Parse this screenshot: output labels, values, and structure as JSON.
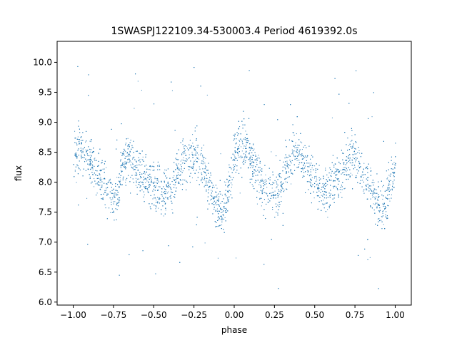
{
  "chart_data": {
    "type": "scatter",
    "title": "1SWASPJ122109.34-530003.4 Period 4619392.0s",
    "xlabel": "phase",
    "ylabel": "flux",
    "xlim": [
      -1.1,
      1.1
    ],
    "ylim": [
      5.95,
      10.35
    ],
    "x_ticks": [
      -1.0,
      -0.75,
      -0.5,
      -0.25,
      0.0,
      0.25,
      0.5,
      0.75,
      1.0
    ],
    "x_tick_labels": [
      "−1.00",
      "−0.75",
      "−0.50",
      "−0.25",
      "0.00",
      "0.25",
      "0.50",
      "0.75",
      "1.00"
    ],
    "y_ticks": [
      6.0,
      6.5,
      7.0,
      7.5,
      8.0,
      8.5,
      9.0,
      9.5,
      10.0
    ],
    "y_tick_labels": [
      "6.0",
      "6.5",
      "7.0",
      "7.5",
      "8.0",
      "8.5",
      "9.0",
      "9.5",
      "10.0"
    ],
    "grid": false,
    "legend": "none",
    "marker_color": "#1f77b4",
    "series": [
      {
        "description_of_shape": "phase-folded light curve, mirrored over two cycles",
        "x": [
          -1.0,
          -0.95,
          -0.9,
          -0.85,
          -0.8,
          -0.75,
          -0.72,
          -0.7,
          -0.65,
          -0.6,
          -0.55,
          -0.5,
          -0.45,
          -0.4,
          -0.35,
          -0.3,
          -0.25,
          -0.2,
          -0.15,
          -0.1,
          -0.07,
          -0.05,
          0.0,
          0.05,
          0.1,
          0.15,
          0.2,
          0.25,
          0.28,
          0.3,
          0.35,
          0.4,
          0.45,
          0.5,
          0.55,
          0.6,
          0.65,
          0.7,
          0.75,
          0.8,
          0.85,
          0.9,
          0.93,
          0.95,
          1.0
        ],
        "y": [
          8.5,
          8.55,
          8.4,
          8.1,
          7.95,
          7.7,
          7.8,
          8.35,
          8.45,
          8.2,
          8.05,
          7.95,
          7.85,
          7.9,
          8.15,
          8.4,
          8.45,
          8.3,
          7.9,
          7.55,
          7.5,
          7.7,
          8.45,
          8.55,
          8.45,
          8.05,
          7.9,
          7.85,
          7.8,
          8.15,
          8.4,
          8.45,
          8.2,
          8.0,
          7.9,
          7.95,
          8.1,
          8.35,
          8.45,
          8.1,
          7.9,
          7.65,
          7.5,
          7.8,
          8.35
        ]
      }
    ]
  }
}
